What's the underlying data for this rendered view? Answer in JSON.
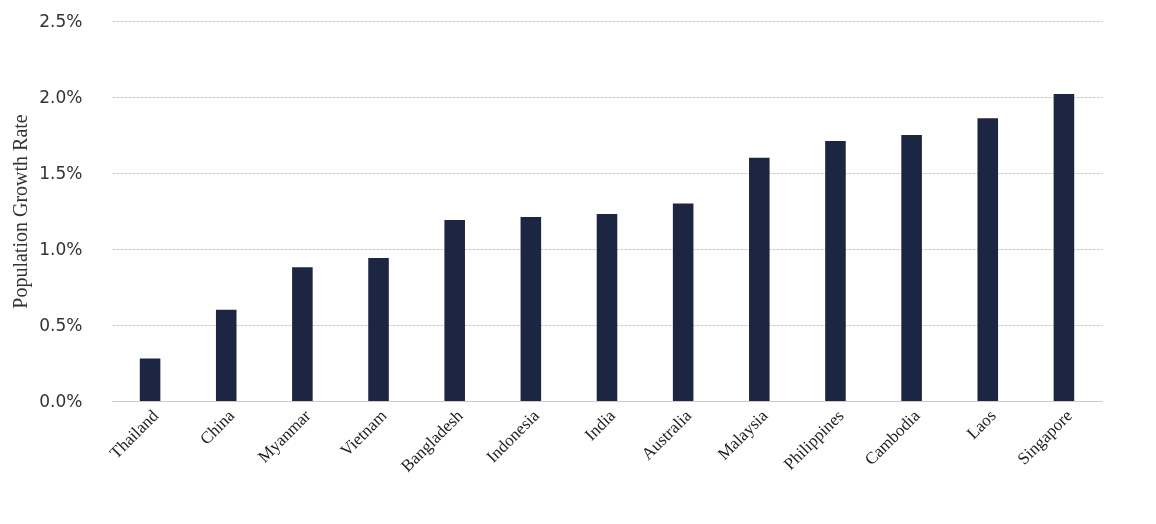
{
  "chart_data": {
    "type": "bar",
    "ylabel": "Population Growth Rate",
    "categories": [
      "Thailand",
      "China",
      "Myanmar",
      "Vietnam",
      "Bangladesh",
      "Indonesia",
      "India",
      "Australia",
      "Malaysia",
      "Philippines",
      "Cambodia",
      "Laos",
      "Singapore"
    ],
    "values": [
      0.28,
      0.6,
      0.88,
      0.94,
      1.19,
      1.21,
      1.23,
      1.3,
      1.6,
      1.71,
      1.75,
      1.86,
      2.02
    ],
    "color": "#1c2541",
    "ylim": [
      0,
      2.5
    ],
    "yticks": [
      {
        "value": 0,
        "label": "0.0%"
      },
      {
        "value": 0.5,
        "label": "0.5%"
      },
      {
        "value": 1,
        "label": "1.0%"
      },
      {
        "value": 1.5,
        "label": "1.5%"
      },
      {
        "value": 2,
        "label": "2.0%"
      },
      {
        "value": 2.5,
        "label": "2.5%"
      }
    ],
    "grid": "y"
  }
}
